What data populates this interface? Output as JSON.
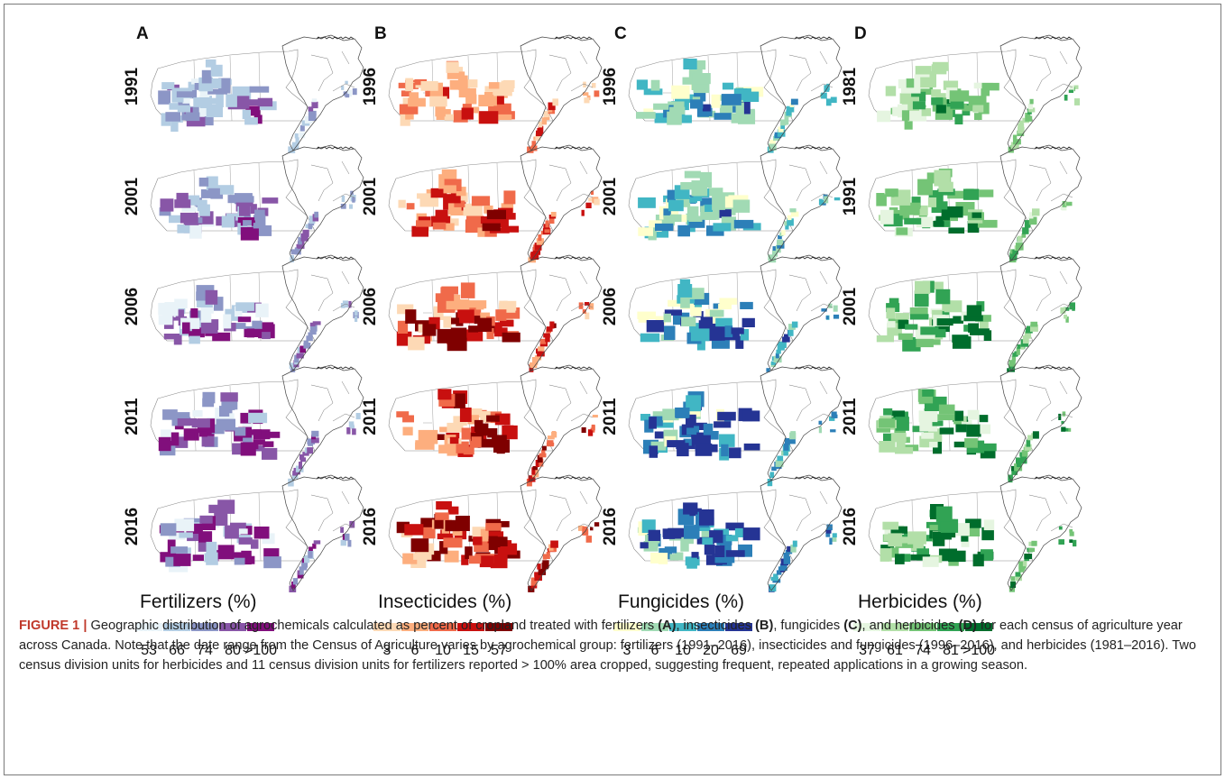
{
  "panels": [
    {
      "letter": "A",
      "years": [
        "1991",
        "2001",
        "2006",
        "2011",
        "2016"
      ],
      "legend_title": "Fertilizers (%)",
      "legend_ticks": [
        "53",
        "66",
        "74",
        "80",
        ">100"
      ],
      "colors": [
        "#e9f3f8",
        "#b3cde3",
        "#8c96c6",
        "#8856a7",
        "#810f7c"
      ]
    },
    {
      "letter": "B",
      "years": [
        "1996",
        "2001",
        "2006",
        "2011",
        "2016"
      ],
      "legend_title": "Insecticides (%)",
      "legend_ticks": [
        "3",
        "6",
        "10",
        "15",
        "57"
      ],
      "colors": [
        "#fdd9b5",
        "#fdae7e",
        "#f06a4a",
        "#c8100f",
        "#7f0000"
      ]
    },
    {
      "letter": "C",
      "years": [
        "1996",
        "2001",
        "2006",
        "2011",
        "2016"
      ],
      "legend_title": "Fungicides (%)",
      "legend_ticks": [
        "3",
        "6",
        "10",
        "20",
        "69"
      ],
      "colors": [
        "#ffffcc",
        "#a1dab4",
        "#41b6c4",
        "#2c7fb8",
        "#253494"
      ]
    },
    {
      "letter": "D",
      "years": [
        "1981",
        "1991",
        "2001",
        "2011",
        "2016"
      ],
      "legend_title": "Herbicides (%)",
      "legend_ticks": [
        "37",
        "61",
        "74",
        "81",
        ">100"
      ],
      "colors": [
        "#e5f5e0",
        "#b2dfa8",
        "#74c476",
        "#31a354",
        "#006d2c"
      ]
    }
  ],
  "caption": {
    "label": "FIGURE 1 |",
    "text_1": " Geographic distribution of agrochemicals calculated as percent of cropland treated with fertilizers ",
    "ref_a": "(A)",
    "text_2": ", insecticides ",
    "ref_b": "(B)",
    "text_3": ", fungicides ",
    "ref_c": "(C)",
    "text_4": ", and herbicides ",
    "ref_d": "(D)",
    "text_5": " for each census of agriculture year across Canada. Note that the date range from the Census of Agriculture varies by agrochemical group: fertilizers (1991–2016), insecticides and fungicides (1996–2016), and herbicides (1981–2016). Two census division units for herbicides and 11 census division units for fertilizers reported > 100% area cropped, suggesting frequent, repeated applications in a growing season."
  }
}
